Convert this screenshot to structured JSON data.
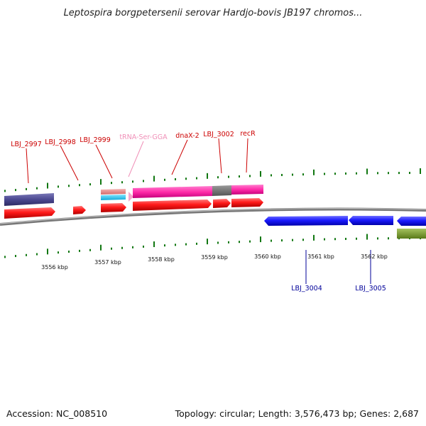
{
  "title": "Leptospira borgpetersenii serovar Hardjo-bovis JB197 chromos...",
  "footer": {
    "accession": "Accession: NC_008510",
    "topology": "Topology: circular; Length: 3,576,473 bp; Genes: 2,687"
  },
  "colors": {
    "backbone": "#8a8a8a",
    "forward_cds": "#ee1111",
    "reverse_cds": "#1111ee",
    "feature_label_top": "#cc0000",
    "feature_label_trna": "#f090b8",
    "feature_label_bottom": "#000099",
    "tick_green": "#117711"
  },
  "scale_labels": [
    "3556 kbp",
    "3557 kbp",
    "3558 kbp",
    "3559 kbp",
    "3560 kbp",
    "3561 kbp",
    "3562 kbp"
  ],
  "top_labels": [
    {
      "id": "lbj-2997",
      "text": "LBJ_2997"
    },
    {
      "id": "lbj-2998",
      "text": "LBJ_2998"
    },
    {
      "id": "lbj-2999",
      "text": "LBJ_2999"
    },
    {
      "id": "trna-ser-gga",
      "text": "tRNA-Ser-GGA"
    },
    {
      "id": "dnax-2",
      "text": "dnaX-2"
    },
    {
      "id": "lbj-3002",
      "text": "LBJ_3002"
    },
    {
      "id": "recr",
      "text": "recR"
    }
  ],
  "bottom_labels": [
    {
      "id": "lbj-3004",
      "text": "LBJ_3004"
    },
    {
      "id": "lbj-3005",
      "text": "LBJ_3005"
    }
  ]
}
